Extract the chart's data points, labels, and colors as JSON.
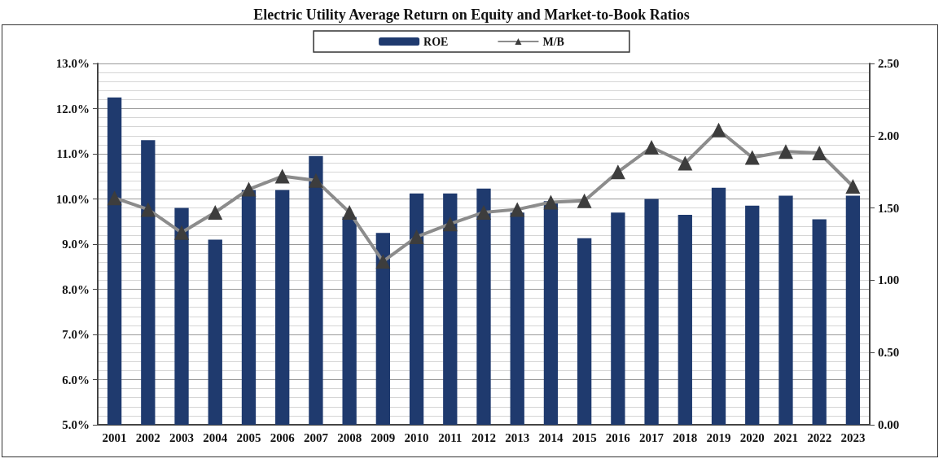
{
  "chart_data": {
    "type": "bar",
    "title": "Electric Utility Average Return on Equity and Market-to-Book Ratios",
    "categories": [
      "2001",
      "2002",
      "2003",
      "2004",
      "2005",
      "2006",
      "2007",
      "2008",
      "2009",
      "2010",
      "2011",
      "2012",
      "2013",
      "2014",
      "2015",
      "2016",
      "2017",
      "2018",
      "2019",
      "2020",
      "2021",
      "2022",
      "2023"
    ],
    "series": [
      {
        "name": "ROE",
        "color": "#1f3a6e",
        "values": [
          12.25,
          11.3,
          9.8,
          9.1,
          10.2,
          10.2,
          10.95,
          9.6,
          9.25,
          10.12,
          10.12,
          10.23,
          9.7,
          9.95,
          9.13,
          9.7,
          10.0,
          9.65,
          10.25,
          9.85,
          10.07,
          9.55,
          10.07
        ]
      },
      {
        "name": "M/B",
        "type": "line",
        "axis": "y2",
        "color": "#8c8c8c",
        "marker": "triangle",
        "values": [
          1.57,
          1.49,
          1.33,
          1.47,
          1.63,
          1.72,
          1.69,
          1.47,
          1.13,
          1.3,
          1.39,
          1.47,
          1.49,
          1.54,
          1.55,
          1.75,
          1.92,
          1.81,
          2.04,
          1.85,
          1.89,
          1.88,
          1.65
        ]
      }
    ],
    "ylim": [
      5,
      13
    ],
    "yticks": [
      {
        "value": 5,
        "label": "5.0%"
      },
      {
        "value": 6,
        "label": "6.0%"
      },
      {
        "value": 7,
        "label": "7.0%"
      },
      {
        "value": 8,
        "label": "8.0%"
      },
      {
        "value": 9,
        "label": "9.0%"
      },
      {
        "value": 10,
        "label": "10.0%"
      },
      {
        "value": 11,
        "label": "11.0%"
      },
      {
        "value": 12,
        "label": "12.0%"
      },
      {
        "value": 13,
        "label": "13.0%"
      }
    ],
    "y2lim": [
      0,
      2.5
    ],
    "y2ticks": [
      {
        "value": 0,
        "label": "0.00"
      },
      {
        "value": 0.5,
        "label": "0.50"
      },
      {
        "value": 1,
        "label": "1.00"
      },
      {
        "value": 1.5,
        "label": "1.50"
      },
      {
        "value": 2,
        "label": "2.00"
      },
      {
        "value": 2.5,
        "label": "2.50"
      }
    ],
    "grid": "y",
    "legend": "top"
  }
}
